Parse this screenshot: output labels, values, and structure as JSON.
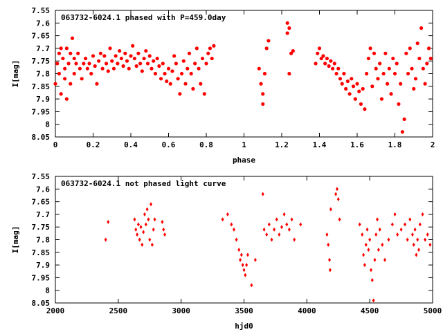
{
  "chart_data": [
    {
      "type": "scatter",
      "title": "063732-6024.1 phased with P=459.0day",
      "xlabel": "phase",
      "ylabel": "I[mag]",
      "xlim": [
        0,
        2
      ],
      "ylim": [
        7.55,
        8.05
      ],
      "y_inverted": true,
      "grid": false,
      "point_color": "#ff0000",
      "point_style": "filled-circle",
      "xticks": [
        0,
        0.2,
        0.4,
        0.6,
        0.8,
        1,
        1.2,
        1.4,
        1.6,
        1.8,
        2
      ],
      "xtick_labels": [
        "0",
        "0.2",
        "0.4",
        "0.6",
        "0.8",
        "1",
        "1.2",
        "1.4",
        "1.6",
        "1.8",
        "2"
      ],
      "yticks": [
        7.55,
        7.6,
        7.65,
        7.7,
        7.75,
        7.8,
        7.85,
        7.9,
        7.95,
        8.0,
        8.05
      ],
      "ytick_labels": [
        "7.55",
        "7.6",
        "7.65",
        "7.7",
        "7.75",
        "7.8",
        "7.85",
        "7.9",
        "7.95",
        "8",
        "8.05"
      ],
      "points": [
        [
          0.0,
          7.84
        ],
        [
          0.01,
          7.76
        ],
        [
          0.02,
          7.72
        ],
        [
          0.02,
          7.8
        ],
        [
          0.03,
          7.7
        ],
        [
          0.03,
          7.88
        ],
        [
          0.04,
          7.74
        ],
        [
          0.05,
          7.82
        ],
        [
          0.05,
          7.78
        ],
        [
          0.06,
          7.9
        ],
        [
          0.06,
          7.7
        ],
        [
          0.07,
          7.76
        ],
        [
          0.08,
          7.84
        ],
        [
          0.08,
          7.72
        ],
        [
          0.09,
          7.66
        ],
        [
          0.1,
          7.74
        ],
        [
          0.1,
          7.8
        ],
        [
          0.11,
          7.76
        ],
        [
          0.12,
          7.72
        ],
        [
          0.13,
          7.78
        ],
        [
          0.14,
          7.82
        ],
        [
          0.15,
          7.76
        ],
        [
          0.16,
          7.74
        ],
        [
          0.17,
          7.78
        ],
        [
          0.18,
          7.76
        ],
        [
          0.19,
          7.8
        ],
        [
          0.2,
          7.73
        ],
        [
          0.21,
          7.77
        ],
        [
          0.22,
          7.84
        ],
        [
          0.23,
          7.75
        ],
        [
          0.24,
          7.72
        ],
        [
          0.25,
          7.78
        ],
        [
          0.26,
          7.73
        ],
        [
          0.27,
          7.76
        ],
        [
          0.28,
          7.79
        ],
        [
          0.29,
          7.7
        ],
        [
          0.3,
          7.75
        ],
        [
          0.31,
          7.78
        ],
        [
          0.32,
          7.73
        ],
        [
          0.33,
          7.76
        ],
        [
          0.34,
          7.71
        ],
        [
          0.35,
          7.74
        ],
        [
          0.36,
          7.77
        ],
        [
          0.37,
          7.72
        ],
        [
          0.38,
          7.75
        ],
        [
          0.39,
          7.78
        ],
        [
          0.4,
          7.73
        ],
        [
          0.41,
          7.69
        ],
        [
          0.42,
          7.74
        ],
        [
          0.43,
          7.77
        ],
        [
          0.44,
          7.72
        ],
        [
          0.45,
          7.76
        ],
        [
          0.46,
          7.79
        ],
        [
          0.47,
          7.74
        ],
        [
          0.48,
          7.71
        ],
        [
          0.49,
          7.76
        ],
        [
          0.5,
          7.73
        ],
        [
          0.51,
          7.78
        ],
        [
          0.52,
          7.75
        ],
        [
          0.53,
          7.8
        ],
        [
          0.54,
          7.74
        ],
        [
          0.55,
          7.77
        ],
        [
          0.56,
          7.82
        ],
        [
          0.57,
          7.76
        ],
        [
          0.58,
          7.8
        ],
        [
          0.59,
          7.83
        ],
        [
          0.6,
          7.78
        ],
        [
          0.61,
          7.84
        ],
        [
          0.62,
          7.79
        ],
        [
          0.63,
          7.73
        ],
        [
          0.64,
          7.76
        ],
        [
          0.65,
          7.82
        ],
        [
          0.66,
          7.88
        ],
        [
          0.67,
          7.8
        ],
        [
          0.68,
          7.75
        ],
        [
          0.69,
          7.84
        ],
        [
          0.7,
          7.78
        ],
        [
          0.71,
          7.72
        ],
        [
          0.72,
          7.8
        ],
        [
          0.73,
          7.86
        ],
        [
          0.74,
          7.76
        ],
        [
          0.75,
          7.7
        ],
        [
          0.76,
          7.78
        ],
        [
          0.77,
          7.84
        ],
        [
          0.78,
          7.74
        ],
        [
          0.79,
          7.88
        ],
        [
          0.8,
          7.76
        ],
        [
          0.81,
          7.72
        ],
        [
          0.82,
          7.7
        ],
        [
          0.83,
          7.74
        ],
        [
          0.84,
          7.69
        ],
        [
          1.08,
          7.78
        ],
        [
          1.09,
          7.84
        ],
        [
          1.1,
          7.88
        ],
        [
          1.1,
          7.92
        ],
        [
          1.11,
          7.8
        ],
        [
          1.12,
          7.7
        ],
        [
          1.13,
          7.67
        ],
        [
          1.23,
          7.6
        ],
        [
          1.23,
          7.64
        ],
        [
          1.24,
          7.62
        ],
        [
          1.24,
          7.8
        ],
        [
          1.25,
          7.72
        ],
        [
          1.26,
          7.71
        ],
        [
          1.38,
          7.76
        ],
        [
          1.39,
          7.72
        ],
        [
          1.4,
          7.7
        ],
        [
          1.41,
          7.74
        ],
        [
          1.42,
          7.73
        ],
        [
          1.43,
          7.76
        ],
        [
          1.44,
          7.74
        ],
        [
          1.45,
          7.77
        ],
        [
          1.46,
          7.75
        ],
        [
          1.47,
          7.78
        ],
        [
          1.48,
          7.76
        ],
        [
          1.49,
          7.8
        ],
        [
          1.5,
          7.78
        ],
        [
          1.51,
          7.82
        ],
        [
          1.52,
          7.84
        ],
        [
          1.53,
          7.8
        ],
        [
          1.54,
          7.86
        ],
        [
          1.55,
          7.83
        ],
        [
          1.56,
          7.88
        ],
        [
          1.57,
          7.82
        ],
        [
          1.58,
          7.85
        ],
        [
          1.59,
          7.9
        ],
        [
          1.6,
          7.84
        ],
        [
          1.61,
          7.87
        ],
        [
          1.62,
          7.92
        ],
        [
          1.63,
          7.86
        ],
        [
          1.64,
          7.94
        ],
        [
          1.65,
          7.8
        ],
        [
          1.66,
          7.74
        ],
        [
          1.67,
          7.7
        ],
        [
          1.68,
          7.85
        ],
        [
          1.69,
          7.72
        ],
        [
          1.7,
          7.78
        ],
        [
          1.71,
          7.82
        ],
        [
          1.72,
          7.76
        ],
        [
          1.73,
          7.9
        ],
        [
          1.74,
          7.8
        ],
        [
          1.75,
          7.72
        ],
        [
          1.76,
          7.84
        ],
        [
          1.77,
          7.78
        ],
        [
          1.78,
          7.88
        ],
        [
          1.79,
          7.74
        ],
        [
          1.8,
          7.8
        ],
        [
          1.81,
          7.76
        ],
        [
          1.82,
          7.92
        ],
        [
          1.83,
          7.84
        ],
        [
          1.84,
          8.03
        ],
        [
          1.85,
          7.98
        ],
        [
          1.86,
          7.72
        ],
        [
          1.87,
          7.8
        ],
        [
          1.88,
          7.7
        ],
        [
          1.89,
          7.78
        ],
        [
          1.9,
          7.86
        ],
        [
          1.91,
          7.82
        ],
        [
          1.92,
          7.68
        ],
        [
          1.93,
          7.74
        ],
        [
          1.94,
          7.62
        ],
        [
          1.95,
          7.78
        ],
        [
          1.96,
          7.84
        ],
        [
          1.97,
          7.76
        ],
        [
          1.98,
          7.7
        ],
        [
          1.99,
          7.74
        ]
      ]
    },
    {
      "type": "scatter",
      "title": "063732-6024.1 not phased light curve",
      "xlabel": "hjd0",
      "ylabel": "I[mag]",
      "xlim": [
        2000,
        5000
      ],
      "ylim": [
        7.55,
        8.05
      ],
      "y_inverted": true,
      "grid": false,
      "point_color": "#ff0000",
      "point_style": "diamond",
      "xticks": [
        2000,
        2500,
        3000,
        3500,
        4000,
        4500,
        5000
      ],
      "xtick_labels": [
        "2000",
        "2500",
        "3000",
        "3500",
        "4000",
        "4500",
        "5000"
      ],
      "yticks": [
        7.55,
        7.6,
        7.65,
        7.7,
        7.75,
        7.8,
        7.85,
        7.9,
        7.95,
        8.0,
        8.05
      ],
      "ytick_labels": [
        "7.55",
        "7.6",
        "7.65",
        "7.7",
        "7.75",
        "7.8",
        "7.85",
        "7.9",
        "7.95",
        "8",
        "8.05"
      ],
      "points": [
        [
          2400,
          7.8
        ],
        [
          2420,
          7.73
        ],
        [
          2630,
          7.72
        ],
        [
          2640,
          7.76
        ],
        [
          2650,
          7.78
        ],
        [
          2660,
          7.74
        ],
        [
          2670,
          7.8
        ],
        [
          2680,
          7.75
        ],
        [
          2690,
          7.82
        ],
        [
          2700,
          7.77
        ],
        [
          2710,
          7.7
        ],
        [
          2720,
          7.74
        ],
        [
          2730,
          7.68
        ],
        [
          2740,
          7.72
        ],
        [
          2750,
          7.8
        ],
        [
          2760,
          7.66
        ],
        [
          2770,
          7.82
        ],
        [
          2780,
          7.76
        ],
        [
          2790,
          7.72
        ],
        [
          2850,
          7.73
        ],
        [
          2860,
          7.76
        ],
        [
          2870,
          7.78
        ],
        [
          3330,
          7.72
        ],
        [
          3370,
          7.7
        ],
        [
          3400,
          7.74
        ],
        [
          3420,
          7.76
        ],
        [
          3440,
          7.8
        ],
        [
          3460,
          7.84
        ],
        [
          3470,
          7.88
        ],
        [
          3480,
          7.86
        ],
        [
          3490,
          7.9
        ],
        [
          3500,
          7.92
        ],
        [
          3510,
          7.94
        ],
        [
          3520,
          7.9
        ],
        [
          3530,
          7.86
        ],
        [
          3560,
          7.98
        ],
        [
          3590,
          7.88
        ],
        [
          3650,
          7.62
        ],
        [
          3660,
          7.76
        ],
        [
          3680,
          7.78
        ],
        [
          3700,
          7.74
        ],
        [
          3720,
          7.8
        ],
        [
          3740,
          7.76
        ],
        [
          3760,
          7.72
        ],
        [
          3780,
          7.78
        ],
        [
          3800,
          7.75
        ],
        [
          3820,
          7.7
        ],
        [
          3840,
          7.74
        ],
        [
          3860,
          7.76
        ],
        [
          3880,
          7.72
        ],
        [
          3900,
          7.8
        ],
        [
          3950,
          7.74
        ],
        [
          4160,
          7.78
        ],
        [
          4170,
          7.82
        ],
        [
          4180,
          7.88
        ],
        [
          4185,
          7.92
        ],
        [
          4190,
          7.68
        ],
        [
          4230,
          7.62
        ],
        [
          4240,
          7.6
        ],
        [
          4250,
          7.64
        ],
        [
          4260,
          7.72
        ],
        [
          4420,
          7.74
        ],
        [
          4440,
          7.78
        ],
        [
          4450,
          7.86
        ],
        [
          4460,
          7.9
        ],
        [
          4470,
          7.82
        ],
        [
          4480,
          7.76
        ],
        [
          4490,
          7.84
        ],
        [
          4500,
          7.8
        ],
        [
          4510,
          7.92
        ],
        [
          4520,
          7.96
        ],
        [
          4530,
          8.04
        ],
        [
          4540,
          7.88
        ],
        [
          4550,
          7.78
        ],
        [
          4560,
          7.72
        ],
        [
          4570,
          7.84
        ],
        [
          4580,
          7.76
        ],
        [
          4600,
          7.82
        ],
        [
          4620,
          7.88
        ],
        [
          4650,
          7.8
        ],
        [
          4680,
          7.74
        ],
        [
          4700,
          7.7
        ],
        [
          4720,
          7.78
        ],
        [
          4750,
          7.76
        ],
        [
          4780,
          7.74
        ],
        [
          4800,
          7.8
        ],
        [
          4820,
          7.72
        ],
        [
          4840,
          7.78
        ],
        [
          4850,
          7.82
        ],
        [
          4860,
          7.76
        ],
        [
          4870,
          7.86
        ],
        [
          4880,
          7.8
        ],
        [
          4890,
          7.84
        ],
        [
          4900,
          7.74
        ],
        [
          4920,
          7.7
        ],
        [
          4940,
          7.8
        ],
        [
          4960,
          7.78
        ],
        [
          4980,
          7.82
        ]
      ]
    }
  ]
}
